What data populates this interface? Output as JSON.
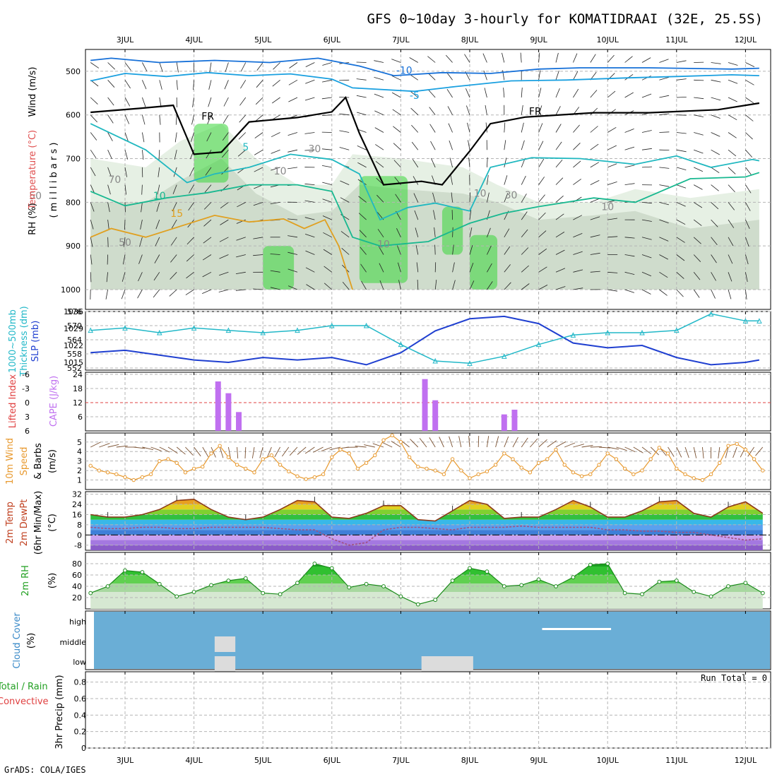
{
  "title": "GFS 0~10day 3-hourly for KOMATIDRAAI (32E, 25.5S)",
  "footer": "GrADS: COLA/IGES",
  "days": [
    "3JUL",
    "4JUL",
    "5JUL",
    "6JUL",
    "7JUL",
    "8JUL",
    "9JUL",
    "10JUL",
    "11JUL",
    "12JUL"
  ],
  "colors": {
    "slp": "#1f3fd0",
    "thickness": "#22b8c8",
    "cape": "#c070f0",
    "lifted_index": "#e04040",
    "wind_speed": "#e89a30",
    "barb": "#7a5030",
    "rh_fill": "#39d739",
    "cloud_bg": "#6aaed6",
    "cloud_block": "#dcdcdc",
    "temp_line": "#8b3a1a",
    "dewpt_line": "#a05080"
  },
  "chart_data": [
    {
      "type": "heatmap",
      "panel": "cross_section",
      "ylabel": [
        "Wind (m/s)",
        "Temperature (°C)",
        "RH (%)",
        "( m i l l i b a r s )"
      ],
      "yticks": [
        500,
        600,
        700,
        800,
        900,
        1000
      ],
      "contour_labels": [
        {
          "text": "-10",
          "x": 4.05,
          "y": 506
        },
        {
          "text": "-5",
          "x": 4.2,
          "y": 563
        },
        {
          "text": "FR",
          "x": 1.2,
          "y": 611
        },
        {
          "text": "FR",
          "x": 5.95,
          "y": 600
        },
        {
          "text": "5",
          "x": 1.75,
          "y": 681
        },
        {
          "text": "10",
          "x": 0.5,
          "y": 793
        },
        {
          "text": "15",
          "x": 0.75,
          "y": 833
        },
        {
          "text": "10",
          "x": 3.75,
          "y": 904
        },
        {
          "text": "30",
          "x": 2.75,
          "y": 685
        },
        {
          "text": "30",
          "x": 5.6,
          "y": 791
        },
        {
          "text": "10",
          "x": 2.25,
          "y": 736
        },
        {
          "text": "10",
          "x": 5.15,
          "y": 787
        },
        {
          "text": "10",
          "x": 7.0,
          "y": 818
        },
        {
          "text": "50",
          "x": -1.3,
          "y": 793
        },
        {
          "text": "70",
          "x": -0.15,
          "y": 756
        },
        {
          "text": "50",
          "x": 0.0,
          "y": 900
        }
      ],
      "lines": [
        {
          "name": "-10",
          "color": "#1670d8",
          "points": [
            [
              -0.5,
              475
            ],
            [
              -0.2,
              470
            ],
            [
              0.5,
              480
            ],
            [
              1.3,
              475
            ],
            [
              2.1,
              480
            ],
            [
              2.8,
              470
            ],
            [
              3.4,
              488
            ],
            [
              3.9,
              510
            ],
            [
              4.6,
              503
            ],
            [
              5.3,
              505
            ],
            [
              6.0,
              495
            ],
            [
              6.6,
              492
            ],
            [
              7.6,
              492
            ],
            [
              8.8,
              495
            ],
            [
              9.2,
              493
            ]
          ]
        },
        {
          "name": "-5",
          "color": "#1aa0e0",
          "points": [
            [
              -0.5,
              522
            ],
            [
              0,
              505
            ],
            [
              0.6,
              512
            ],
            [
              1.2,
              503
            ],
            [
              1.8,
              510
            ],
            [
              2.4,
              506
            ],
            [
              3.0,
              518
            ],
            [
              3.3,
              538
            ],
            [
              4.2,
              546
            ],
            [
              4.8,
              535
            ],
            [
              5.6,
              522
            ],
            [
              6.4,
              520
            ],
            [
              7.3,
              515
            ],
            [
              8.0,
              512
            ],
            [
              8.8,
              508
            ],
            [
              9.2,
              510
            ]
          ]
        },
        {
          "name": "FR",
          "color": "#000000",
          "points": [
            [
              -0.5,
              594
            ],
            [
              0.2,
              585
            ],
            [
              0.7,
              578
            ],
            [
              1.0,
              690
            ],
            [
              1.4,
              685
            ],
            [
              1.8,
              616
            ],
            [
              2.5,
              606
            ],
            [
              3.0,
              593
            ],
            [
              3.2,
              560
            ],
            [
              3.4,
              642
            ],
            [
              3.75,
              760
            ],
            [
              4.3,
              752
            ],
            [
              4.6,
              760
            ],
            [
              5.0,
              683
            ],
            [
              5.3,
              620
            ],
            [
              5.8,
              605
            ],
            [
              6.8,
              595
            ],
            [
              7.6,
              595
            ],
            [
              8.6,
              588
            ],
            [
              9.2,
              573
            ]
          ]
        },
        {
          "name": "5",
          "color": "#20b8c0",
          "points": [
            [
              -0.5,
              620
            ],
            [
              0.3,
              680
            ],
            [
              0.9,
              755
            ],
            [
              1.3,
              735
            ],
            [
              1.8,
              720
            ],
            [
              2.4,
              690
            ],
            [
              3.0,
              702
            ],
            [
              3.4,
              735
            ],
            [
              3.7,
              840
            ],
            [
              4.1,
              812
            ],
            [
              4.5,
              802
            ],
            [
              5.0,
              820
            ],
            [
              5.3,
              720
            ],
            [
              5.9,
              698
            ],
            [
              6.6,
              700
            ],
            [
              7.4,
              713
            ],
            [
              8.0,
              694
            ],
            [
              8.5,
              720
            ],
            [
              9.1,
              702
            ],
            [
              9.2,
              705
            ]
          ]
        },
        {
          "name": "10",
          "color": "#18b890",
          "points": [
            [
              -0.5,
              775
            ],
            [
              0,
              808
            ],
            [
              0.6,
              790
            ],
            [
              1.2,
              778
            ],
            [
              1.8,
              760
            ],
            [
              2.5,
              760
            ],
            [
              3.0,
              775
            ],
            [
              3.3,
              880
            ],
            [
              3.7,
              900
            ],
            [
              4.4,
              890
            ],
            [
              5.0,
              848
            ],
            [
              5.5,
              825
            ],
            [
              6.0,
              810
            ],
            [
              6.8,
              790
            ],
            [
              7.4,
              800
            ],
            [
              8.2,
              746
            ],
            [
              9.0,
              742
            ],
            [
              9.2,
              732
            ]
          ]
        },
        {
          "name": "15",
          "color": "#e0a020",
          "points": [
            [
              -0.5,
              880
            ],
            [
              -0.2,
              860
            ],
            [
              0.3,
              880
            ],
            [
              0.9,
              850
            ],
            [
              1.3,
              830
            ],
            [
              1.8,
              845
            ],
            [
              2.3,
              838
            ],
            [
              2.6,
              860
            ],
            [
              2.9,
              840
            ],
            [
              3.1,
              900
            ],
            [
              3.3,
              1000
            ]
          ]
        }
      ],
      "rh_green_patches": [
        {
          "x0": 1.0,
          "x1": 1.5,
          "y0": 620,
          "y1": 755
        },
        {
          "x0": 3.4,
          "x1": 4.1,
          "y0": 740,
          "y1": 985
        },
        {
          "x0": 4.6,
          "x1": 4.9,
          "y0": 810,
          "y1": 920
        },
        {
          "x0": 5.0,
          "x1": 5.4,
          "y0": 875,
          "y1": 1000
        },
        {
          "x0": 2.0,
          "x1": 2.45,
          "y0": 900,
          "y1": 1000
        }
      ]
    },
    {
      "type": "line",
      "panel": "slp_thickness",
      "ylabel_left": [
        "Thickness (dm)",
        "1000~500mb"
      ],
      "ylabel_right": "SLP (mb)",
      "left_ticks": [
        552,
        558,
        564,
        570,
        576
      ],
      "right_ticks": [
        1015,
        1022,
        1029,
        1036
      ],
      "x": [
        -0.5,
        0,
        0.5,
        1,
        1.5,
        2,
        2.5,
        3,
        3.5,
        4,
        4.5,
        5,
        5.5,
        6,
        6.5,
        7,
        7.5,
        8,
        8.5,
        9,
        9.2
      ],
      "series": [
        {
          "name": "SLP",
          "axis": "right",
          "values": [
            1019,
            1020,
            1018,
            1016,
            1015,
            1017,
            1016,
            1017,
            1014,
            1019,
            1028,
            1033,
            1034,
            1031,
            1023,
            1021,
            1022,
            1017,
            1014,
            1015,
            1016
          ]
        },
        {
          "name": "Thickness",
          "axis": "left",
          "values": [
            568,
            569,
            567,
            569,
            568,
            567,
            568,
            570,
            570,
            562,
            555,
            554,
            557,
            562,
            566,
            567,
            567,
            568,
            575,
            572,
            572
          ]
        }
      ]
    },
    {
      "type": "bar",
      "panel": "cape_li",
      "ylabel_left": "Lifted Index",
      "ylabel_right": "CAPE (J/kg)",
      "left_ticks": [
        "6",
        "3",
        "0",
        "-3",
        "-6"
      ],
      "right_ticks": [
        6,
        12,
        18,
        24
      ],
      "reference_line": 12,
      "x": [
        1.35,
        1.5,
        1.65,
        4.35,
        4.5,
        5.5,
        5.65
      ],
      "values": [
        21,
        16,
        8,
        22,
        13,
        7,
        9
      ]
    },
    {
      "type": "line",
      "panel": "wind10m",
      "ylabel": [
        "10m Wind",
        "Speed",
        "& Barbs",
        "(m/s)"
      ],
      "yticks": [
        1,
        2,
        3,
        4,
        5
      ],
      "x": [
        -0.5,
        -0.375,
        -0.25,
        -0.125,
        0,
        0.125,
        0.25,
        0.375,
        0.5,
        0.625,
        0.75,
        0.875,
        1,
        1.125,
        1.25,
        1.375,
        1.5,
        1.625,
        1.75,
        1.875,
        2,
        2.125,
        2.25,
        2.375,
        2.5,
        2.625,
        2.75,
        2.875,
        3,
        3.125,
        3.25,
        3.375,
        3.5,
        3.625,
        3.75,
        3.875,
        4,
        4.125,
        4.25,
        4.375,
        4.5,
        4.625,
        4.75,
        4.875,
        5,
        5.125,
        5.25,
        5.375,
        5.5,
        5.625,
        5.75,
        5.875,
        6,
        6.125,
        6.25,
        6.375,
        6.5,
        6.625,
        6.75,
        6.875,
        7,
        7.125,
        7.25,
        7.375,
        7.5,
        7.625,
        7.75,
        7.875,
        8,
        8.125,
        8.25,
        8.375,
        8.5,
        8.625,
        8.75,
        8.875,
        9,
        9.125,
        9.25
      ],
      "values": [
        2.5,
        2.0,
        1.8,
        1.6,
        1.3,
        1.0,
        1.3,
        1.6,
        3.0,
        3.2,
        2.8,
        1.8,
        2.2,
        2.4,
        3.8,
        4.6,
        3.4,
        2.6,
        2.2,
        1.8,
        3.2,
        3.6,
        2.6,
        1.9,
        1.4,
        1.1,
        1.3,
        1.6,
        3.4,
        4.2,
        3.8,
        2.2,
        2.8,
        3.6,
        5.2,
        5.7,
        5.0,
        3.4,
        2.4,
        2.2,
        2.0,
        1.6,
        3.2,
        2.0,
        1.2,
        1.6,
        1.9,
        2.6,
        3.8,
        3.2,
        2.3,
        1.8,
        2.8,
        3.2,
        4.2,
        2.6,
        1.8,
        1.4,
        1.6,
        2.6,
        3.8,
        3.2,
        2.2,
        1.6,
        2.0,
        3.2,
        4.4,
        3.8,
        2.2,
        1.6,
        1.2,
        1.0,
        1.6,
        2.8,
        4.6,
        4.8,
        4.2,
        3.2,
        2.0
      ]
    },
    {
      "type": "area",
      "panel": "temp_dewpt",
      "ylabel": [
        "2m Temp",
        "2m DewPt",
        "(6hr Min/Max)",
        "(°C)"
      ],
      "yticks": [
        -8,
        0,
        8,
        16,
        24,
        32
      ],
      "x": [
        -0.5,
        -0.25,
        0,
        0.25,
        0.5,
        0.75,
        1,
        1.25,
        1.5,
        1.75,
        2,
        2.25,
        2.5,
        2.75,
        3,
        3.25,
        3.5,
        3.75,
        4,
        4.25,
        4.5,
        4.75,
        5,
        5.25,
        5.5,
        5.75,
        6,
        6.25,
        6.5,
        6.75,
        7,
        7.25,
        7.5,
        7.75,
        8,
        8.25,
        8.5,
        8.75,
        9,
        9.25
      ],
      "series": [
        {
          "name": "2m Temp",
          "values": [
            16,
            14,
            14,
            16,
            20,
            27,
            28,
            20,
            14,
            12,
            14,
            20,
            27,
            26,
            14,
            13,
            17,
            23,
            23,
            12,
            11,
            19,
            27,
            24,
            13,
            14,
            14,
            20,
            27,
            22,
            14,
            14,
            19,
            26,
            27,
            17,
            14,
            22,
            26,
            17
          ]
        },
        {
          "name": "2m DewPt",
          "values": [
            6,
            5,
            5,
            6,
            6,
            5,
            5,
            6,
            6,
            6,
            6,
            5,
            4,
            4,
            -3,
            -8,
            -6,
            4,
            6,
            6,
            5,
            4,
            6,
            6,
            6,
            7,
            6,
            6,
            6,
            6,
            4,
            4,
            3,
            3,
            2,
            2,
            0,
            -2,
            -4,
            -3
          ]
        }
      ]
    },
    {
      "type": "area",
      "panel": "rh2m",
      "ylabel": [
        "2m RH",
        "(%)"
      ],
      "yticks": [
        20,
        40,
        60,
        80
      ],
      "x": [
        -0.5,
        -0.25,
        0,
        0.25,
        0.5,
        0.75,
        1,
        1.25,
        1.5,
        1.75,
        2,
        2.25,
        2.5,
        2.75,
        3,
        3.25,
        3.5,
        3.75,
        4,
        4.25,
        4.5,
        4.75,
        5,
        5.25,
        5.5,
        5.75,
        6,
        6.25,
        6.5,
        6.75,
        7,
        7.25,
        7.5,
        7.75,
        8,
        8.25,
        8.5,
        8.75,
        9,
        9.25
      ],
      "values": [
        28,
        40,
        68,
        65,
        44,
        22,
        30,
        42,
        50,
        54,
        28,
        26,
        46,
        80,
        72,
        38,
        44,
        40,
        22,
        8,
        16,
        50,
        72,
        66,
        40,
        42,
        52,
        40,
        56,
        78,
        80,
        28,
        26,
        48,
        50,
        30,
        22,
        40,
        46,
        28
      ]
    },
    {
      "type": "heatmap",
      "panel": "cloud_cover",
      "ylabel": [
        "Cloud Cover",
        "(%)"
      ],
      "levels": [
        "high",
        "middle",
        "low"
      ],
      "blocks": [
        {
          "level": "middle",
          "x0": 1.3,
          "x1": 1.6
        },
        {
          "level": "low",
          "x0": 1.3,
          "x1": 1.6
        },
        {
          "level": "low",
          "x0": 4.3,
          "x1": 5.05
        },
        {
          "level": "high",
          "x0": 6.05,
          "x1": 7.05
        }
      ]
    },
    {
      "type": "bar",
      "panel": "precip",
      "ylabel": "3hr Precip (mm)",
      "legend": [
        "Total / Rain",
        "Convective"
      ],
      "annotation": "Run Total = 0",
      "yticks": [
        0,
        0.2,
        0.4,
        0.6,
        0.8
      ],
      "values": []
    }
  ]
}
